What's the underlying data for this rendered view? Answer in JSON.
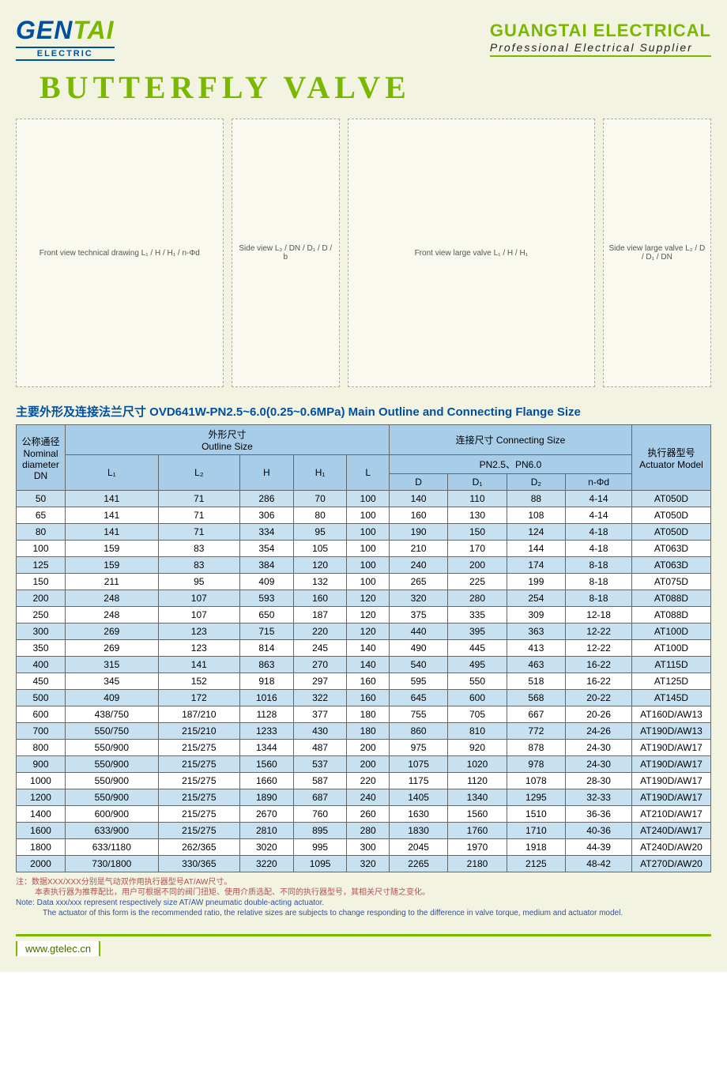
{
  "logo": {
    "left_gen": "GEN",
    "left_tai": "TAI",
    "left_sub": "ELECTRIC",
    "right_company": "GUANGTAI ELECTRICAL",
    "right_subtitle": "Professional Electrical Supplier"
  },
  "title": "BUTTERFLY VALVE",
  "diagrams": {
    "label1": "L₁",
    "label2": "L₂",
    "label_h": "H",
    "label_h1": "H₁",
    "label_dn": "DN",
    "label_d": "D",
    "label_d1": "D₁",
    "label_d2": "D₂",
    "label_b": "b",
    "label_nphi": "n-Φd",
    "placeholder1": "Front view technical drawing L₁ / H / H₁ / n-Φd",
    "placeholder2": "Side view L₂ / DN / D₁ / D / b",
    "placeholder3": "Front view large valve L₁ / H / H₁",
    "placeholder4": "Side view large valve L₂ / D / D₁ / DN"
  },
  "section_title": "主要外形及连接法兰尺寸 OVD641W-PN2.5~6.0(0.25~0.6MPa)  Main Outline and Connecting Flange Size",
  "table": {
    "headers": {
      "dn": "公称通径\nNominal diameter\nDN",
      "outline": "外形尺寸\nOutline Size",
      "connecting": "连接尺寸 Connecting Size",
      "pn": "PN2.5、PN6.0",
      "actuator": "执行器型号\nActuator Model",
      "l1": "L₁",
      "l2": "L₂",
      "h": "H",
      "h1": "H₁",
      "l": "L",
      "d": "D",
      "d1": "D₁",
      "d2": "D₂",
      "nphi": "n-Φd"
    },
    "rows": [
      [
        "50",
        "141",
        "71",
        "286",
        "70",
        "100",
        "140",
        "110",
        "88",
        "4-14",
        "AT050D"
      ],
      [
        "65",
        "141",
        "71",
        "306",
        "80",
        "100",
        "160",
        "130",
        "108",
        "4-14",
        "AT050D"
      ],
      [
        "80",
        "141",
        "71",
        "334",
        "95",
        "100",
        "190",
        "150",
        "124",
        "4-18",
        "AT050D"
      ],
      [
        "100",
        "159",
        "83",
        "354",
        "105",
        "100",
        "210",
        "170",
        "144",
        "4-18",
        "AT063D"
      ],
      [
        "125",
        "159",
        "83",
        "384",
        "120",
        "100",
        "240",
        "200",
        "174",
        "8-18",
        "AT063D"
      ],
      [
        "150",
        "211",
        "95",
        "409",
        "132",
        "100",
        "265",
        "225",
        "199",
        "8-18",
        "AT075D"
      ],
      [
        "200",
        "248",
        "107",
        "593",
        "160",
        "120",
        "320",
        "280",
        "254",
        "8-18",
        "AT088D"
      ],
      [
        "250",
        "248",
        "107",
        "650",
        "187",
        "120",
        "375",
        "335",
        "309",
        "12-18",
        "AT088D"
      ],
      [
        "300",
        "269",
        "123",
        "715",
        "220",
        "120",
        "440",
        "395",
        "363",
        "12-22",
        "AT100D"
      ],
      [
        "350",
        "269",
        "123",
        "814",
        "245",
        "140",
        "490",
        "445",
        "413",
        "12-22",
        "AT100D"
      ],
      [
        "400",
        "315",
        "141",
        "863",
        "270",
        "140",
        "540",
        "495",
        "463",
        "16-22",
        "AT115D"
      ],
      [
        "450",
        "345",
        "152",
        "918",
        "297",
        "160",
        "595",
        "550",
        "518",
        "16-22",
        "AT125D"
      ],
      [
        "500",
        "409",
        "172",
        "1016",
        "322",
        "160",
        "645",
        "600",
        "568",
        "20-22",
        "AT145D"
      ],
      [
        "600",
        "438/750",
        "187/210",
        "1128",
        "377",
        "180",
        "755",
        "705",
        "667",
        "20-26",
        "AT160D/AW13"
      ],
      [
        "700",
        "550/750",
        "215/210",
        "1233",
        "430",
        "180",
        "860",
        "810",
        "772",
        "24-26",
        "AT190D/AW13"
      ],
      [
        "800",
        "550/900",
        "215/275",
        "1344",
        "487",
        "200",
        "975",
        "920",
        "878",
        "24-30",
        "AT190D/AW17"
      ],
      [
        "900",
        "550/900",
        "215/275",
        "1560",
        "537",
        "200",
        "1075",
        "1020",
        "978",
        "24-30",
        "AT190D/AW17"
      ],
      [
        "1000",
        "550/900",
        "215/275",
        "1660",
        "587",
        "220",
        "1175",
        "1120",
        "1078",
        "28-30",
        "AT190D/AW17"
      ],
      [
        "1200",
        "550/900",
        "215/275",
        "1890",
        "687",
        "240",
        "1405",
        "1340",
        "1295",
        "32-33",
        "AT190D/AW17"
      ],
      [
        "1400",
        "600/900",
        "215/275",
        "2670",
        "760",
        "260",
        "1630",
        "1560",
        "1510",
        "36-36",
        "AT210D/AW17"
      ],
      [
        "1600",
        "633/900",
        "215/275",
        "2810",
        "895",
        "280",
        "1830",
        "1760",
        "1710",
        "40-36",
        "AT240D/AW17"
      ],
      [
        "1800",
        "633/1180",
        "262/365",
        "3020",
        "995",
        "300",
        "2045",
        "1970",
        "1918",
        "44-39",
        "AT240D/AW20"
      ],
      [
        "2000",
        "730/1800",
        "330/365",
        "3220",
        "1095",
        "320",
        "2265",
        "2180",
        "2125",
        "48-42",
        "AT270D/AW20"
      ]
    ]
  },
  "notes": {
    "cn1": "注：数据XXX/XXX分别是气动双作用执行器型号AT/AW尺寸。",
    "cn2": "本表执行器为推荐配比，用户可根据不同的阀门扭矩、使用介质选配、不同的执行器型号，其相关尺寸随之变化。",
    "en1": "Note:   Data xxx/xxx represent respectively size AT/AW pneumatic double-acting actuator.",
    "en2": "The actuator of this form is the recommended ratio, the relative sizes are subjects to change responding to the difference in valve torque, medium and actuator model."
  },
  "footer_url": "www.gtelec.cn"
}
